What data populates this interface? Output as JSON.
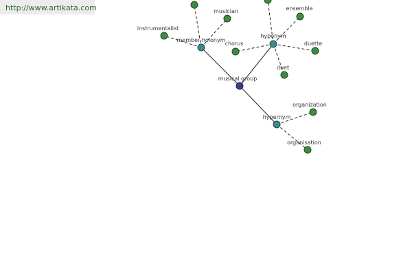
{
  "header": {
    "url": "http://www.artikata.com"
  },
  "nodes": [
    {
      "label": "musical group"
    },
    {
      "label": "member holonym"
    },
    {
      "label": "hyponym"
    },
    {
      "label": "hypernym"
    },
    {
      "label": "instrumentalist"
    },
    {
      "label": "musician"
    },
    {
      "label": "ensemble"
    },
    {
      "label": "chorus"
    },
    {
      "label": "duette"
    },
    {
      "label": "duet"
    },
    {
      "label": "organization"
    },
    {
      "label": "organisation"
    }
  ]
}
